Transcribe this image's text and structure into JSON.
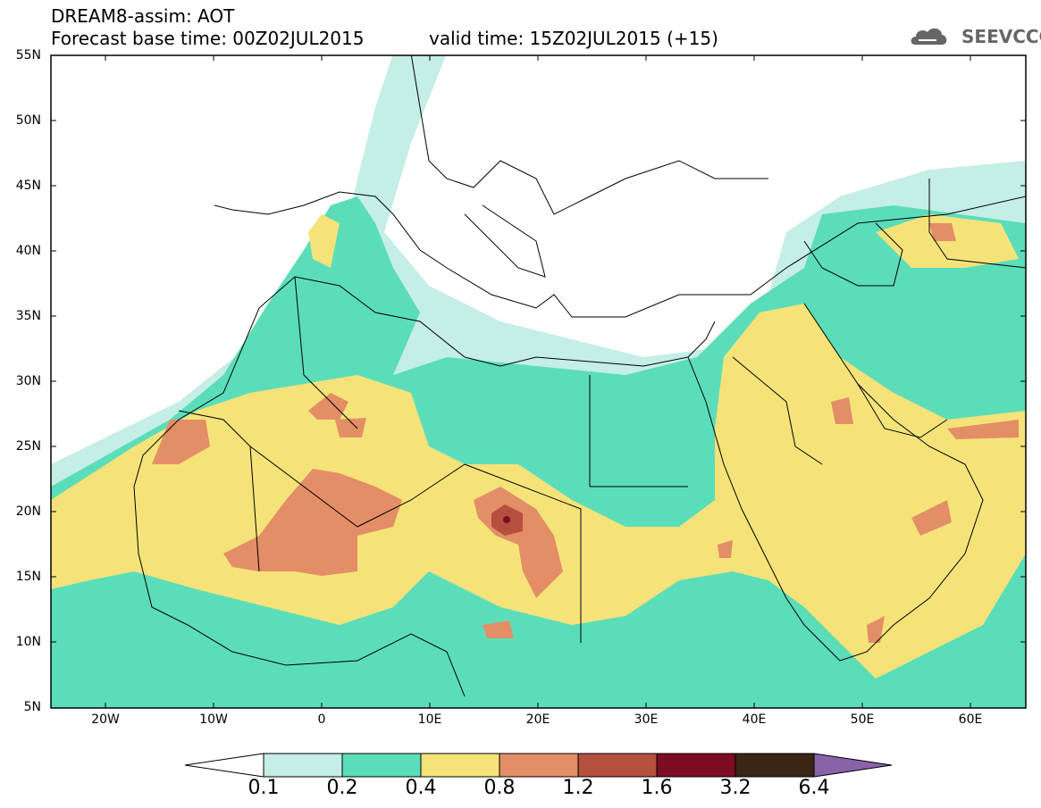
{
  "header": {
    "title_line1": "DREAM8-assim: AOT",
    "title_line2": "Forecast base time: 00Z02JUL2015",
    "valid_time": "valid time: 15Z02JUL2015 (+15)",
    "logo_text": "SEEVCCC"
  },
  "map": {
    "lat_labels": [
      "55N",
      "50N",
      "45N",
      "40N",
      "35N",
      "30N",
      "25N",
      "20N",
      "15N",
      "10N",
      "5N"
    ],
    "lon_labels": [
      "20W",
      "10W",
      "0",
      "10E",
      "20E",
      "30E",
      "40E",
      "50E",
      "60E"
    ],
    "background_color": "#ffffff"
  },
  "legend": {
    "labels": [
      "0.1",
      "0.2",
      "0.4",
      "0.8",
      "1.2",
      "1.6",
      "3.2",
      "6.4"
    ],
    "colors": [
      "#ffffff",
      "#c4eee6",
      "#5cddb9",
      "#f5e37a",
      "#e38e66",
      "#b5503f",
      "#7e0c25",
      "#3c2514",
      "#8a62a8"
    ]
  }
}
